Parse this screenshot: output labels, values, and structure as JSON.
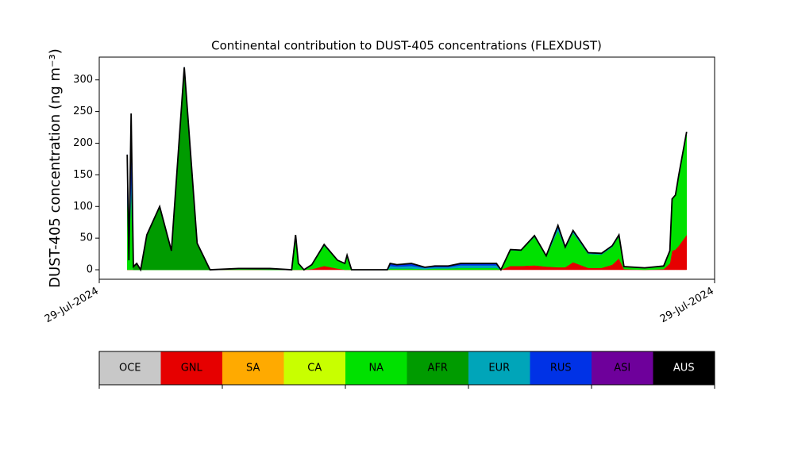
{
  "chart_data": {
    "type": "stacked_area",
    "title": "Continental contribution to DUST-405 concentrations (FLEXDUST)",
    "y_label": "DUST-405 concentration (ng m⁻³)",
    "x": [
      0,
      0.3,
      0.7,
      1.1,
      1.7,
      2.4,
      3.5,
      5.8,
      7.9,
      10.2,
      12.5,
      14.8,
      19.9,
      25.5,
      29.4,
      30.1,
      30.6,
      31.6,
      33.0,
      35.2,
      37.6,
      38.9,
      39.3,
      40.1,
      46.5,
      47.0,
      48.2,
      50.8,
      53.2,
      55.0,
      57.4,
      59.6,
      66.0,
      66.8,
      68.5,
      70.4,
      72.8,
      74.9,
      77.0,
      78.3,
      79.7,
      82.4,
      84.8,
      86.7,
      87.9,
      88.8,
      92.5,
      95.9,
      97.0,
      97.4,
      98.0,
      98.6,
      100
    ],
    "series": [
      {
        "name": "GNL",
        "color": "#e60000",
        "values": [
          0,
          0,
          0,
          0,
          0,
          0,
          0,
          0,
          0,
          0,
          0,
          0,
          0,
          0,
          0,
          0,
          0,
          0,
          1,
          6,
          2,
          0,
          0,
          0,
          0,
          0,
          0,
          0,
          0,
          0,
          0,
          0,
          0,
          0,
          6,
          6,
          7,
          5,
          4,
          4,
          12,
          3,
          3,
          8,
          18,
          1,
          0,
          1,
          10,
          30,
          32,
          38,
          55
        ]
      },
      {
        "name": "NA",
        "color": "#00e100",
        "values": [
          115,
          15,
          130,
          0,
          0,
          0,
          0,
          0,
          0,
          0,
          0,
          0,
          1,
          0,
          0,
          50,
          10,
          0,
          7,
          32,
          13,
          10,
          22,
          0,
          0,
          2,
          2,
          2,
          1,
          2,
          2,
          3,
          3,
          0,
          25,
          24,
          45,
          16,
          58,
          30,
          46,
          22,
          21,
          28,
          35,
          4,
          3,
          5,
          20,
          82,
          86,
          112,
          163
        ]
      },
      {
        "name": "AFR",
        "color": "#009b00",
        "values": [
          0,
          0,
          0,
          5,
          10,
          0,
          55,
          100,
          30,
          320,
          42,
          0,
          1,
          2,
          0,
          0,
          0,
          0,
          0,
          0,
          0,
          0,
          0,
          0,
          0,
          0,
          0,
          0,
          0,
          0,
          0,
          0,
          0,
          0,
          0,
          0,
          0,
          0,
          0,
          0,
          0,
          0,
          0,
          0,
          0,
          0,
          0,
          0,
          0,
          0,
          0,
          0,
          0
        ]
      },
      {
        "name": "EUR",
        "color": "#00a5b9",
        "values": [
          10,
          0,
          17,
          0,
          0,
          0,
          0,
          0,
          0,
          0,
          0,
          0,
          0,
          0,
          0,
          5,
          0,
          0,
          0,
          2,
          0,
          0,
          1,
          0,
          0,
          4,
          3,
          4,
          2,
          2,
          2,
          4,
          4,
          0,
          1,
          1,
          2,
          1,
          4,
          2,
          2,
          1,
          1,
          1,
          1,
          0,
          0,
          0,
          0,
          0,
          0,
          0,
          0
        ]
      },
      {
        "name": "RUS",
        "color": "#0032e6",
        "values": [
          57,
          0,
          100,
          0,
          0,
          0,
          0,
          0,
          0,
          0,
          0,
          0,
          0,
          0,
          0,
          0,
          0,
          0,
          0,
          0,
          0,
          0,
          0,
          0,
          0,
          4,
          3,
          4,
          1,
          2,
          2,
          3,
          3,
          0,
          0,
          0,
          0,
          0,
          4,
          0,
          2,
          1,
          1,
          1,
          1,
          0,
          0,
          0,
          0,
          0,
          0,
          0,
          0
        ]
      }
    ],
    "xlim": [
      -5,
      105
    ],
    "xticks": [
      {
        "value": -5,
        "label": "29-Jul-2024"
      },
      {
        "value": 105,
        "label": "29-Jul-2024"
      }
    ],
    "ylim": [
      -15,
      336
    ],
    "yticks": [
      0,
      50,
      100,
      150,
      200,
      250,
      300
    ],
    "outline_color": "#000000",
    "colorbar": {
      "labels": [
        "OCE",
        "GNL",
        "SA",
        "CA",
        "NA",
        "AFR",
        "EUR",
        "RUS",
        "ASI",
        "AUS"
      ],
      "colors": [
        "#c8c8c8",
        "#e60000",
        "#ffaa00",
        "#c8ff00",
        "#00e100",
        "#009b00",
        "#00a5b9",
        "#0032e6",
        "#6e009b",
        "#000000"
      ]
    }
  }
}
